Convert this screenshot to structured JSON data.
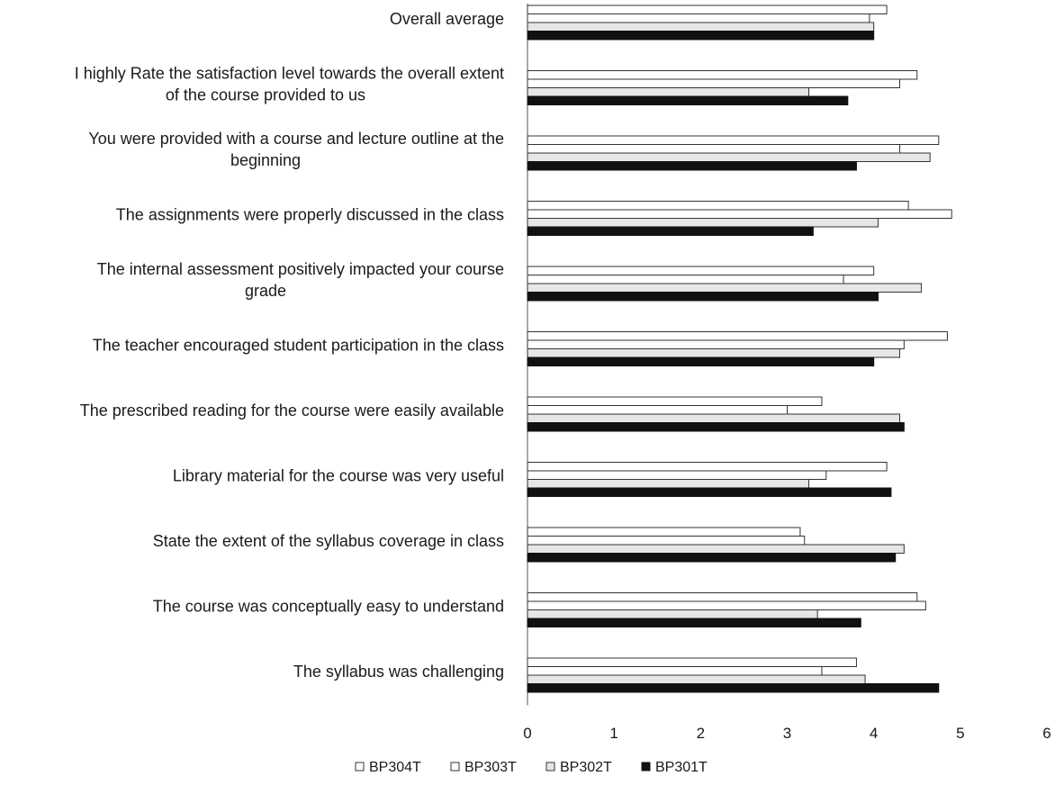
{
  "chart_data": {
    "type": "bar",
    "orientation": "horizontal",
    "categories": [
      [
        "Overall average"
      ],
      [
        "I highly Rate the satisfaction level towards the overall extent",
        "of the course provided to us"
      ],
      [
        "You were provided with a course and lecture outline at the",
        "beginning"
      ],
      [
        "The assignments were properly discussed in the class"
      ],
      [
        "The internal assessment positively impacted your course",
        "grade"
      ],
      [
        "The teacher encouraged student participation in the class"
      ],
      [
        "The prescribed reading for the course were easily available"
      ],
      [
        "Library material for the course was very useful"
      ],
      [
        "State the extent of the syllabus coverage in class"
      ],
      [
        "The course was conceptually easy to understand"
      ],
      [
        "The syllabus was challenging"
      ]
    ],
    "series": [
      {
        "name": "BP304T",
        "color": "#ffffff",
        "values": [
          4.15,
          4.5,
          4.75,
          4.4,
          4.0,
          4.85,
          3.4,
          4.15,
          3.15,
          4.5,
          3.8
        ]
      },
      {
        "name": "BP303T",
        "color": "#ffffff",
        "values": [
          3.95,
          4.3,
          4.3,
          4.9,
          3.65,
          4.35,
          3.0,
          3.45,
          3.2,
          4.6,
          3.4
        ]
      },
      {
        "name": "BP302T",
        "color": "#e6e6e6",
        "values": [
          4.0,
          3.25,
          4.65,
          4.05,
          4.55,
          4.3,
          4.3,
          3.25,
          4.35,
          3.35,
          3.9
        ]
      },
      {
        "name": "BP301T",
        "color": "#111111",
        "values": [
          4.0,
          3.7,
          3.8,
          3.3,
          4.05,
          4.0,
          4.35,
          4.2,
          4.25,
          3.85,
          4.75
        ]
      }
    ],
    "xlim": [
      0,
      6
    ],
    "x_ticks": [
      "0",
      "1",
      "2",
      "3",
      "4",
      "5",
      "6"
    ],
    "grid": false,
    "legend_position": "bottom",
    "title": "",
    "xlabel": "",
    "ylabel": ""
  }
}
